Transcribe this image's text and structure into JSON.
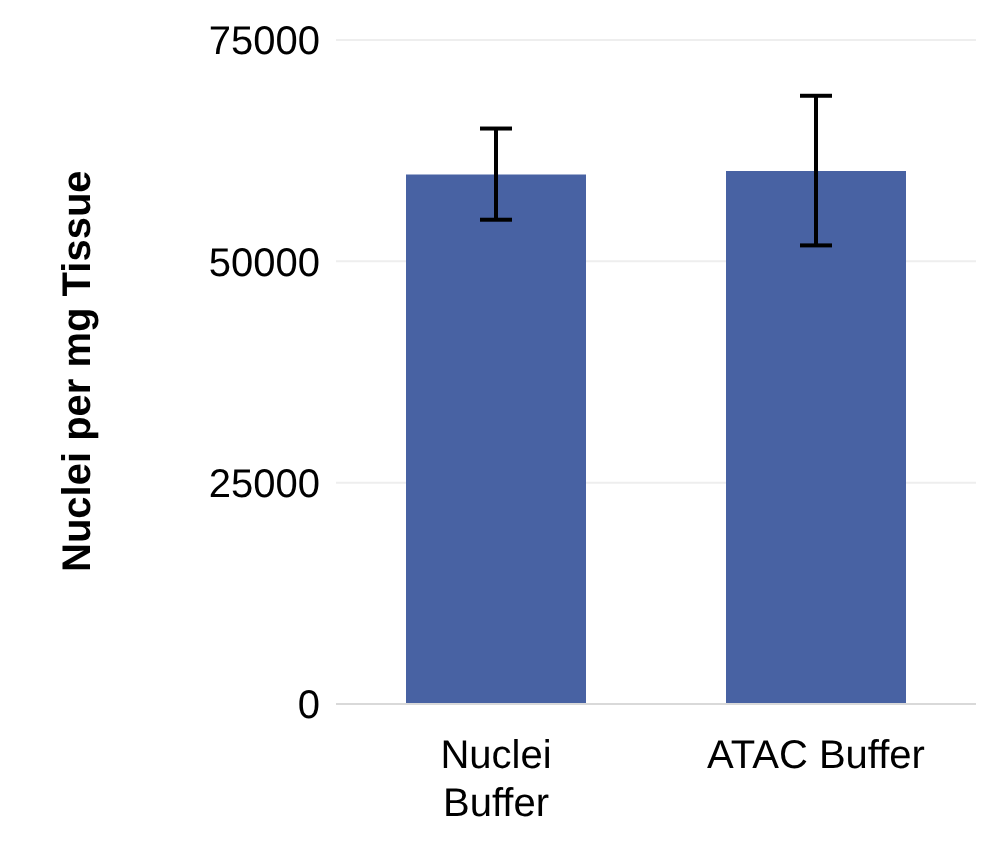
{
  "chart_data": {
    "type": "bar",
    "ylabel": "Nuclei per mg Tissue",
    "categories": [
      "Nuclei Buffer",
      "ATAC Buffer"
    ],
    "values": [
      59800,
      60200
    ],
    "errors": [
      [
        54700,
        65000
      ],
      [
        51800,
        68700
      ]
    ],
    "color": "#4862a3",
    "ylim": [
      0,
      75000
    ],
    "yticks": [
      0,
      25000,
      50000,
      75000
    ],
    "grid": "y"
  }
}
